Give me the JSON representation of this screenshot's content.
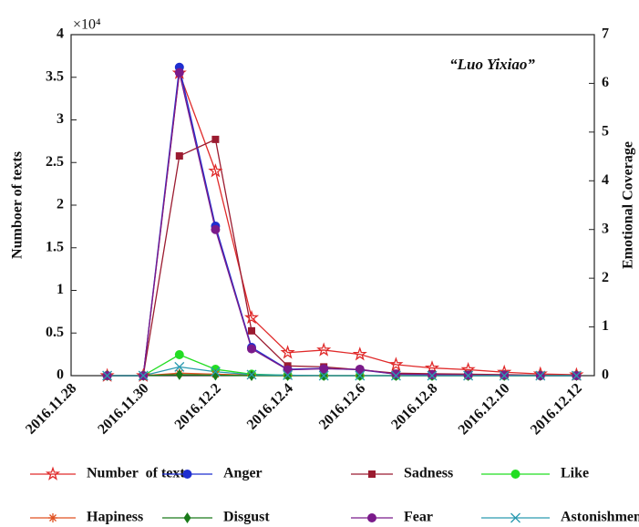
{
  "chart_data": {
    "type": "line",
    "annotation": "“Luo Yixiao”",
    "y_label": "Numboer of texts",
    "y2_label": "Emotional Coverage",
    "y_multiplier": "×10⁴",
    "categories": [
      "2016.11.28",
      null,
      "2016.11.30",
      null,
      "2016.12.2",
      null,
      "2016.12.4",
      null,
      "2016.12.6",
      null,
      "2016.12.8",
      null,
      "2016.12.10",
      null,
      "2016.12.12"
    ],
    "ylim": [
      0,
      4
    ],
    "yticks": [
      0,
      0.5,
      1,
      1.5,
      2,
      2.5,
      3,
      3.5,
      4
    ],
    "y2lim": [
      0,
      7
    ],
    "y2ticks": [
      0,
      1,
      2,
      3,
      4,
      5,
      6,
      7
    ],
    "series": [
      {
        "name": "Number  of texts",
        "color": "#e02a2a",
        "marker": "star",
        "values": [
          null,
          0,
          0,
          3.55,
          2.4,
          0.68,
          0.27,
          0.3,
          0.25,
          0.13,
          0.09,
          0.07,
          0.04,
          0.02,
          0.01
        ]
      },
      {
        "name": "Anger",
        "color": "#1f2fd0",
        "marker": "circle",
        "axis": "y2",
        "values": [
          null,
          0,
          0,
          6.33,
          3.07,
          0.58,
          0.13,
          0.15,
          0.12,
          0.03,
          0.02,
          0.01,
          0.01,
          0,
          0
        ]
      },
      {
        "name": "Sadness",
        "color": "#9b1b30",
        "marker": "square",
        "axis": "y2",
        "values": [
          null,
          0,
          0,
          4.51,
          4.85,
          0.92,
          0.2,
          0.18,
          0.12,
          0.05,
          0.04,
          0.03,
          0.02,
          0.01,
          0.01
        ]
      },
      {
        "name": "Like",
        "color": "#22dd22",
        "marker": "circle",
        "axis": "y2",
        "values": [
          null,
          0,
          0,
          0.43,
          0.13,
          0.03,
          0.01,
          0,
          0,
          0,
          0,
          0,
          0,
          0,
          0
        ]
      },
      {
        "name": "Hapiness",
        "color": "#e05020",
        "marker": "asterisk",
        "axis": "y2",
        "values": [
          null,
          0,
          0,
          0.05,
          0.03,
          0.01,
          0,
          0,
          0,
          0,
          0,
          0,
          0,
          0,
          0
        ]
      },
      {
        "name": "Disgust",
        "color": "#1a7a1a",
        "marker": "diamond",
        "axis": "y2",
        "values": [
          null,
          0,
          0,
          0.02,
          0.01,
          0,
          0,
          0,
          0,
          0,
          0,
          0,
          0,
          0,
          0
        ]
      },
      {
        "name": "Fear",
        "color": "#7a1a8a",
        "marker": "circle",
        "axis": "y2",
        "values": [
          null,
          0,
          0,
          6.22,
          3.0,
          0.55,
          0.12,
          0.14,
          0.13,
          0.03,
          0.02,
          0.01,
          0.01,
          0,
          0
        ]
      },
      {
        "name": "Astonishment",
        "color": "#2a9ab0",
        "marker": "x",
        "axis": "y2",
        "values": [
          null,
          0,
          0,
          0.18,
          0.08,
          0.02,
          0.01,
          0,
          0,
          0,
          0,
          0,
          0,
          0,
          0
        ]
      }
    ]
  }
}
